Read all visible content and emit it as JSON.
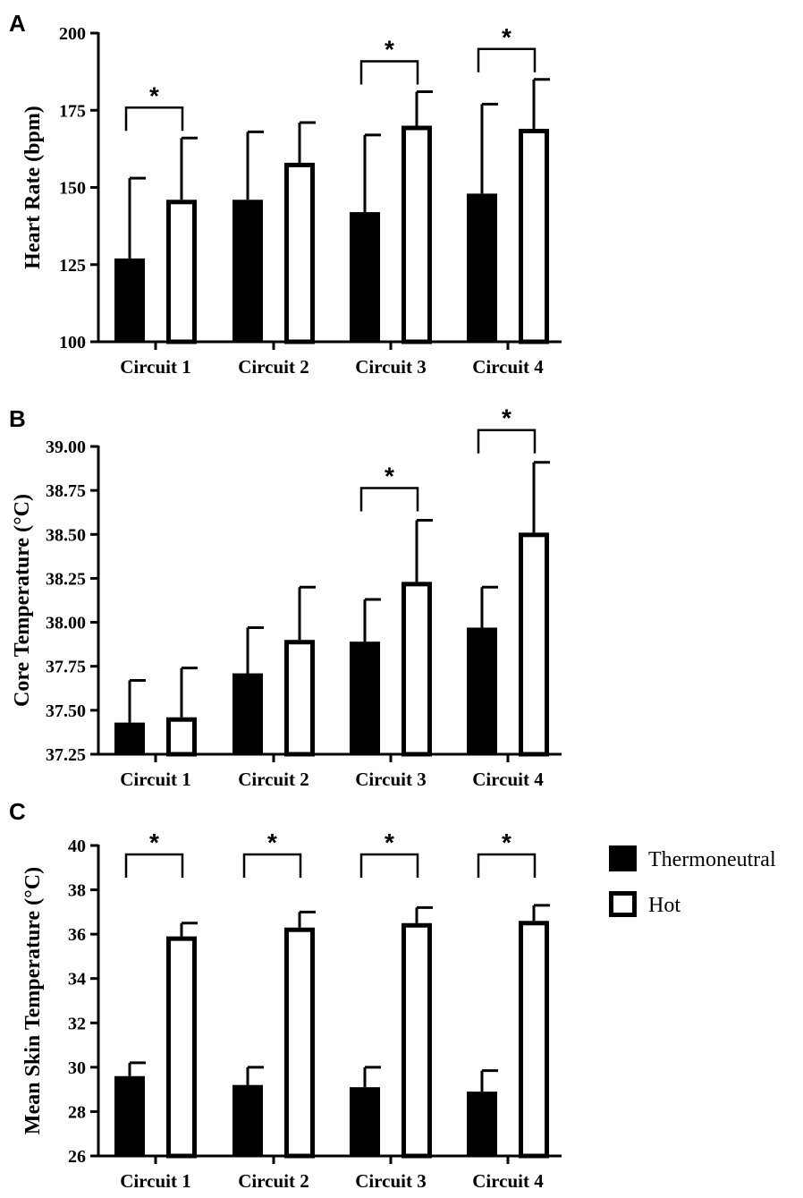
{
  "chart_data": [
    {
      "panel": "A",
      "type": "bar",
      "title": "",
      "xlabel": "",
      "ylabel": "Heart Rate (bpm)",
      "ylim": [
        100,
        200
      ],
      "yticks": [
        100,
        125,
        150,
        175,
        200
      ],
      "ytick_labels": [
        "100",
        "125",
        "150",
        "175",
        "200"
      ],
      "categories": [
        "Circuit 1",
        "Circuit 2",
        "Circuit 3",
        "Circuit 4"
      ],
      "series": [
        {
          "name": "Thermoneutral",
          "values": [
            127,
            146,
            142,
            148
          ],
          "errors": [
            26,
            22,
            25,
            29
          ]
        },
        {
          "name": "Hot",
          "values": [
            146,
            158,
            170,
            169
          ],
          "errors": [
            20,
            13,
            11,
            16
          ]
        }
      ],
      "significance": [
        true,
        false,
        true,
        true
      ],
      "significance_label": "*"
    },
    {
      "panel": "B",
      "type": "bar",
      "title": "",
      "xlabel": "",
      "ylabel": "Core Temperature (°C)",
      "ylim": [
        37.25,
        39.0
      ],
      "yticks": [
        37.25,
        37.5,
        37.75,
        38.0,
        38.25,
        38.5,
        38.75,
        39.0
      ],
      "ytick_labels": [
        "37.25",
        "37.50",
        "37.75",
        "38.00",
        "38.25",
        "38.50",
        "38.75",
        "39.00"
      ],
      "categories": [
        "Circuit 1",
        "Circuit 2",
        "Circuit 3",
        "Circuit 4"
      ],
      "series": [
        {
          "name": "Thermoneutral",
          "values": [
            37.43,
            37.71,
            37.89,
            37.97
          ],
          "errors": [
            0.24,
            0.26,
            0.24,
            0.23
          ]
        },
        {
          "name": "Hot",
          "values": [
            37.46,
            37.9,
            38.23,
            38.51
          ],
          "errors": [
            0.28,
            0.3,
            0.35,
            0.4
          ]
        }
      ],
      "significance": [
        false,
        false,
        true,
        true
      ],
      "significance_label": "*"
    },
    {
      "panel": "C",
      "type": "bar",
      "title": "",
      "xlabel": "",
      "ylabel": "Mean Skin Temperature (°C)",
      "ylim": [
        26,
        40
      ],
      "yticks": [
        26,
        28,
        30,
        32,
        34,
        36,
        38,
        40
      ],
      "ytick_labels": [
        "26",
        "28",
        "30",
        "32",
        "34",
        "36",
        "38",
        "40"
      ],
      "categories": [
        "Circuit 1",
        "Circuit 2",
        "Circuit 3",
        "Circuit 4"
      ],
      "series": [
        {
          "name": "Thermoneutral",
          "values": [
            29.6,
            29.2,
            29.1,
            28.9
          ],
          "errors": [
            0.6,
            0.8,
            0.9,
            0.95
          ]
        },
        {
          "name": "Hot",
          "values": [
            35.9,
            36.3,
            36.5,
            36.6
          ],
          "errors": [
            0.6,
            0.7,
            0.7,
            0.7
          ]
        }
      ],
      "significance": [
        true,
        true,
        true,
        true
      ],
      "significance_label": "*"
    }
  ],
  "legend": {
    "items": [
      {
        "label": "Thermoneutral",
        "style": "filled"
      },
      {
        "label": "Hot",
        "style": "open"
      }
    ],
    "placement": "right of panel C"
  },
  "colors": {
    "thermoneutral_fill": "#000000",
    "hot_fill": "#ffffff",
    "stroke": "#000000"
  }
}
